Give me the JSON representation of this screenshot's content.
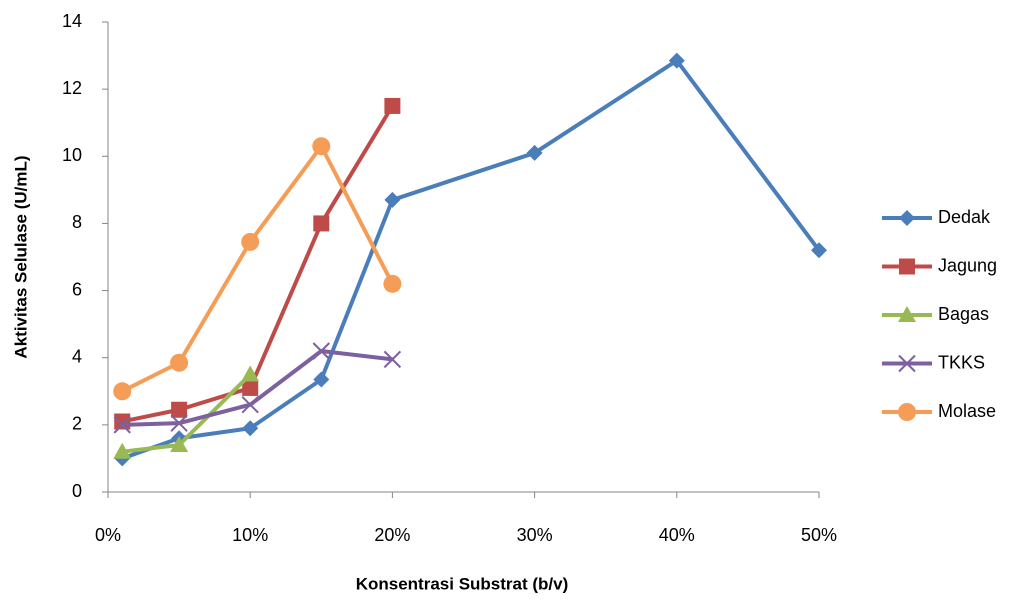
{
  "chart_data": {
    "type": "line",
    "x_label": "Konsentrasi Substrat (b/v)",
    "y_label": "Aktivitas Selulase (U/mL)",
    "x": [
      1,
      5,
      10,
      15,
      20,
      30,
      40,
      50
    ],
    "series": [
      {
        "name": "Dedak",
        "color": "#4a7ebb",
        "marker": "diamond",
        "values": [
          1.0,
          1.6,
          1.9,
          3.35,
          8.7,
          10.1,
          12.85,
          7.2
        ]
      },
      {
        "name": "Jagung",
        "color": "#be4b48",
        "marker": "square",
        "values": [
          2.1,
          2.45,
          3.1,
          8.0,
          11.5,
          null,
          null,
          null
        ]
      },
      {
        "name": "Bagas",
        "color": "#98b954",
        "marker": "triangle",
        "values": [
          1.2,
          1.4,
          3.5,
          null,
          null,
          null,
          null,
          null
        ]
      },
      {
        "name": "TKKS",
        "color": "#7d60a0",
        "marker": "x",
        "values": [
          2.0,
          2.05,
          2.6,
          4.2,
          3.95,
          null,
          null,
          null
        ]
      },
      {
        "name": "Molase",
        "color": "#f59d56",
        "marker": "circle",
        "values": [
          3.0,
          3.85,
          7.45,
          10.3,
          6.2,
          null,
          null,
          null
        ]
      }
    ],
    "xlim": [
      0,
      50
    ],
    "xticks": [
      {
        "value": 0,
        "label": "0%"
      },
      {
        "value": 10,
        "label": "10%"
      },
      {
        "value": 20,
        "label": "20%"
      },
      {
        "value": 30,
        "label": "30%"
      },
      {
        "value": 40,
        "label": "40%"
      },
      {
        "value": 50,
        "label": "50%"
      }
    ],
    "ylim": [
      0,
      14
    ],
    "yticks": [
      0,
      2,
      4,
      6,
      8,
      10,
      12,
      14
    ],
    "grid": false,
    "legend": "right"
  }
}
